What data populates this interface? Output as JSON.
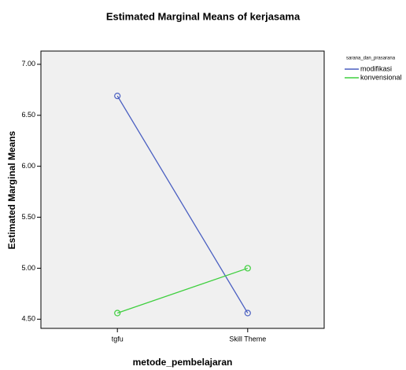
{
  "chart_data": {
    "type": "line",
    "title": "Estimated Marginal Means of kerjasama",
    "x_label": "metode_pembelajaran",
    "y_label": "Estimated Marginal Means",
    "legend_title": "sarana_dan_prasarana",
    "categories": [
      "tgfu",
      "Skill Theme"
    ],
    "series": [
      {
        "name": "modifikasi",
        "color": "#4a5fc1",
        "values": [
          6.69,
          4.56
        ]
      },
      {
        "name": "konvensional",
        "color": "#3ecf3e",
        "values": [
          4.56,
          5.0
        ]
      }
    ],
    "ylim": [
      4.41,
      7.13
    ],
    "yticks": [
      {
        "value": 4.5,
        "label": "4.50"
      },
      {
        "value": 5.0,
        "label": "5.00"
      },
      {
        "value": 5.5,
        "label": "5.50"
      },
      {
        "value": 6.0,
        "label": "6.00"
      },
      {
        "value": 6.5,
        "label": "6.50"
      },
      {
        "value": 7.0,
        "label": "7.00"
      }
    ],
    "legend_position": "right"
  }
}
